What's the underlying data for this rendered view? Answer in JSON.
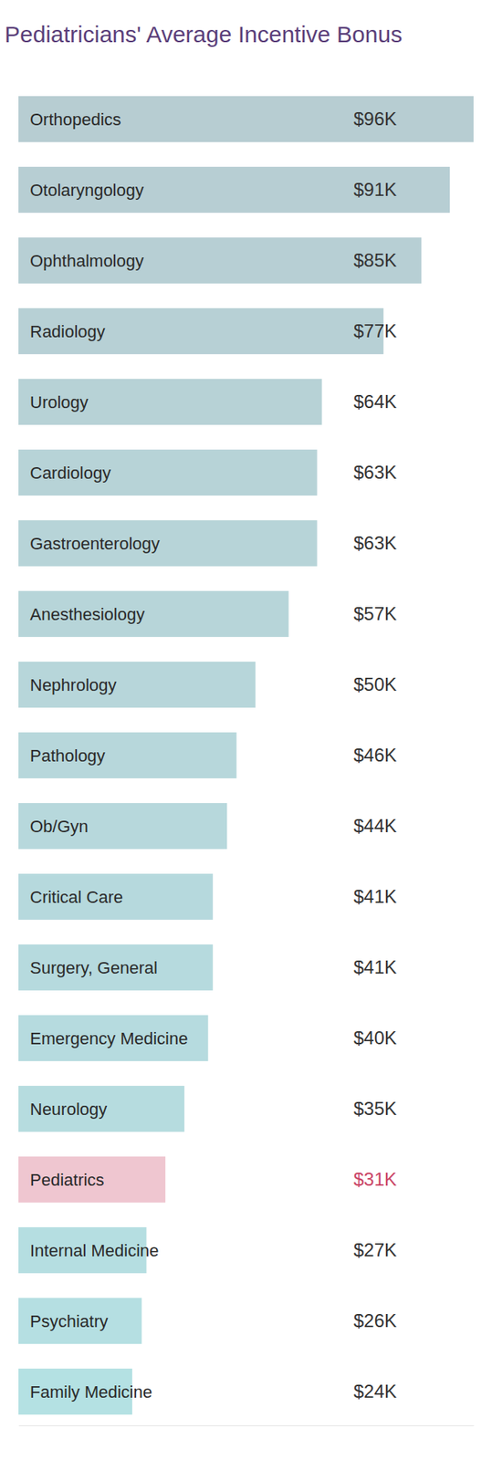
{
  "chart_data": {
    "type": "bar",
    "orientation": "horizontal",
    "title": "Pediatricians' Average Incentive Bonus",
    "categories": [
      "Orthopedics",
      "Otolaryngology",
      "Ophthalmology",
      "Radiology",
      "Urology",
      "Cardiology",
      "Gastroenterology",
      "Anesthesiology",
      "Nephrology",
      "Pathology",
      "Ob/Gyn",
      "Critical Care",
      "Surgery, General",
      "Emergency Medicine",
      "Neurology",
      "Pediatrics",
      "Internal Medicine",
      "Psychiatry",
      "Family Medicine"
    ],
    "values": [
      96,
      91,
      85,
      77,
      64,
      63,
      63,
      57,
      50,
      46,
      44,
      41,
      41,
      40,
      35,
      31,
      27,
      26,
      24
    ],
    "value_labels": [
      "$96K",
      "$91K",
      "$85K",
      "$77K",
      "$64K",
      "$63K",
      "$63K",
      "$57K",
      "$50K",
      "$46K",
      "$44K",
      "$41K",
      "$41K",
      "$40K",
      "$35K",
      "$31K",
      "$27K",
      "$26K",
      "$24K"
    ],
    "colors": [
      "#b7cdd2",
      "#b7ced3",
      "#b7cfd4",
      "#b7d0d5",
      "#b7d2d6",
      "#b7d3d7",
      "#b7d4d8",
      "#b7d5d9",
      "#b7d6da",
      "#b7d7db",
      "#b7d8dc",
      "#b6d9dd",
      "#b6dade",
      "#b6dbdf",
      "#b6dcdf",
      "#efc6d0",
      "#b5dee1",
      "#b5dfe2",
      "#b4e1e3"
    ],
    "xlim": [
      0,
      96
    ],
    "data_labels": true,
    "tick_labels": false,
    "grid": false
  }
}
